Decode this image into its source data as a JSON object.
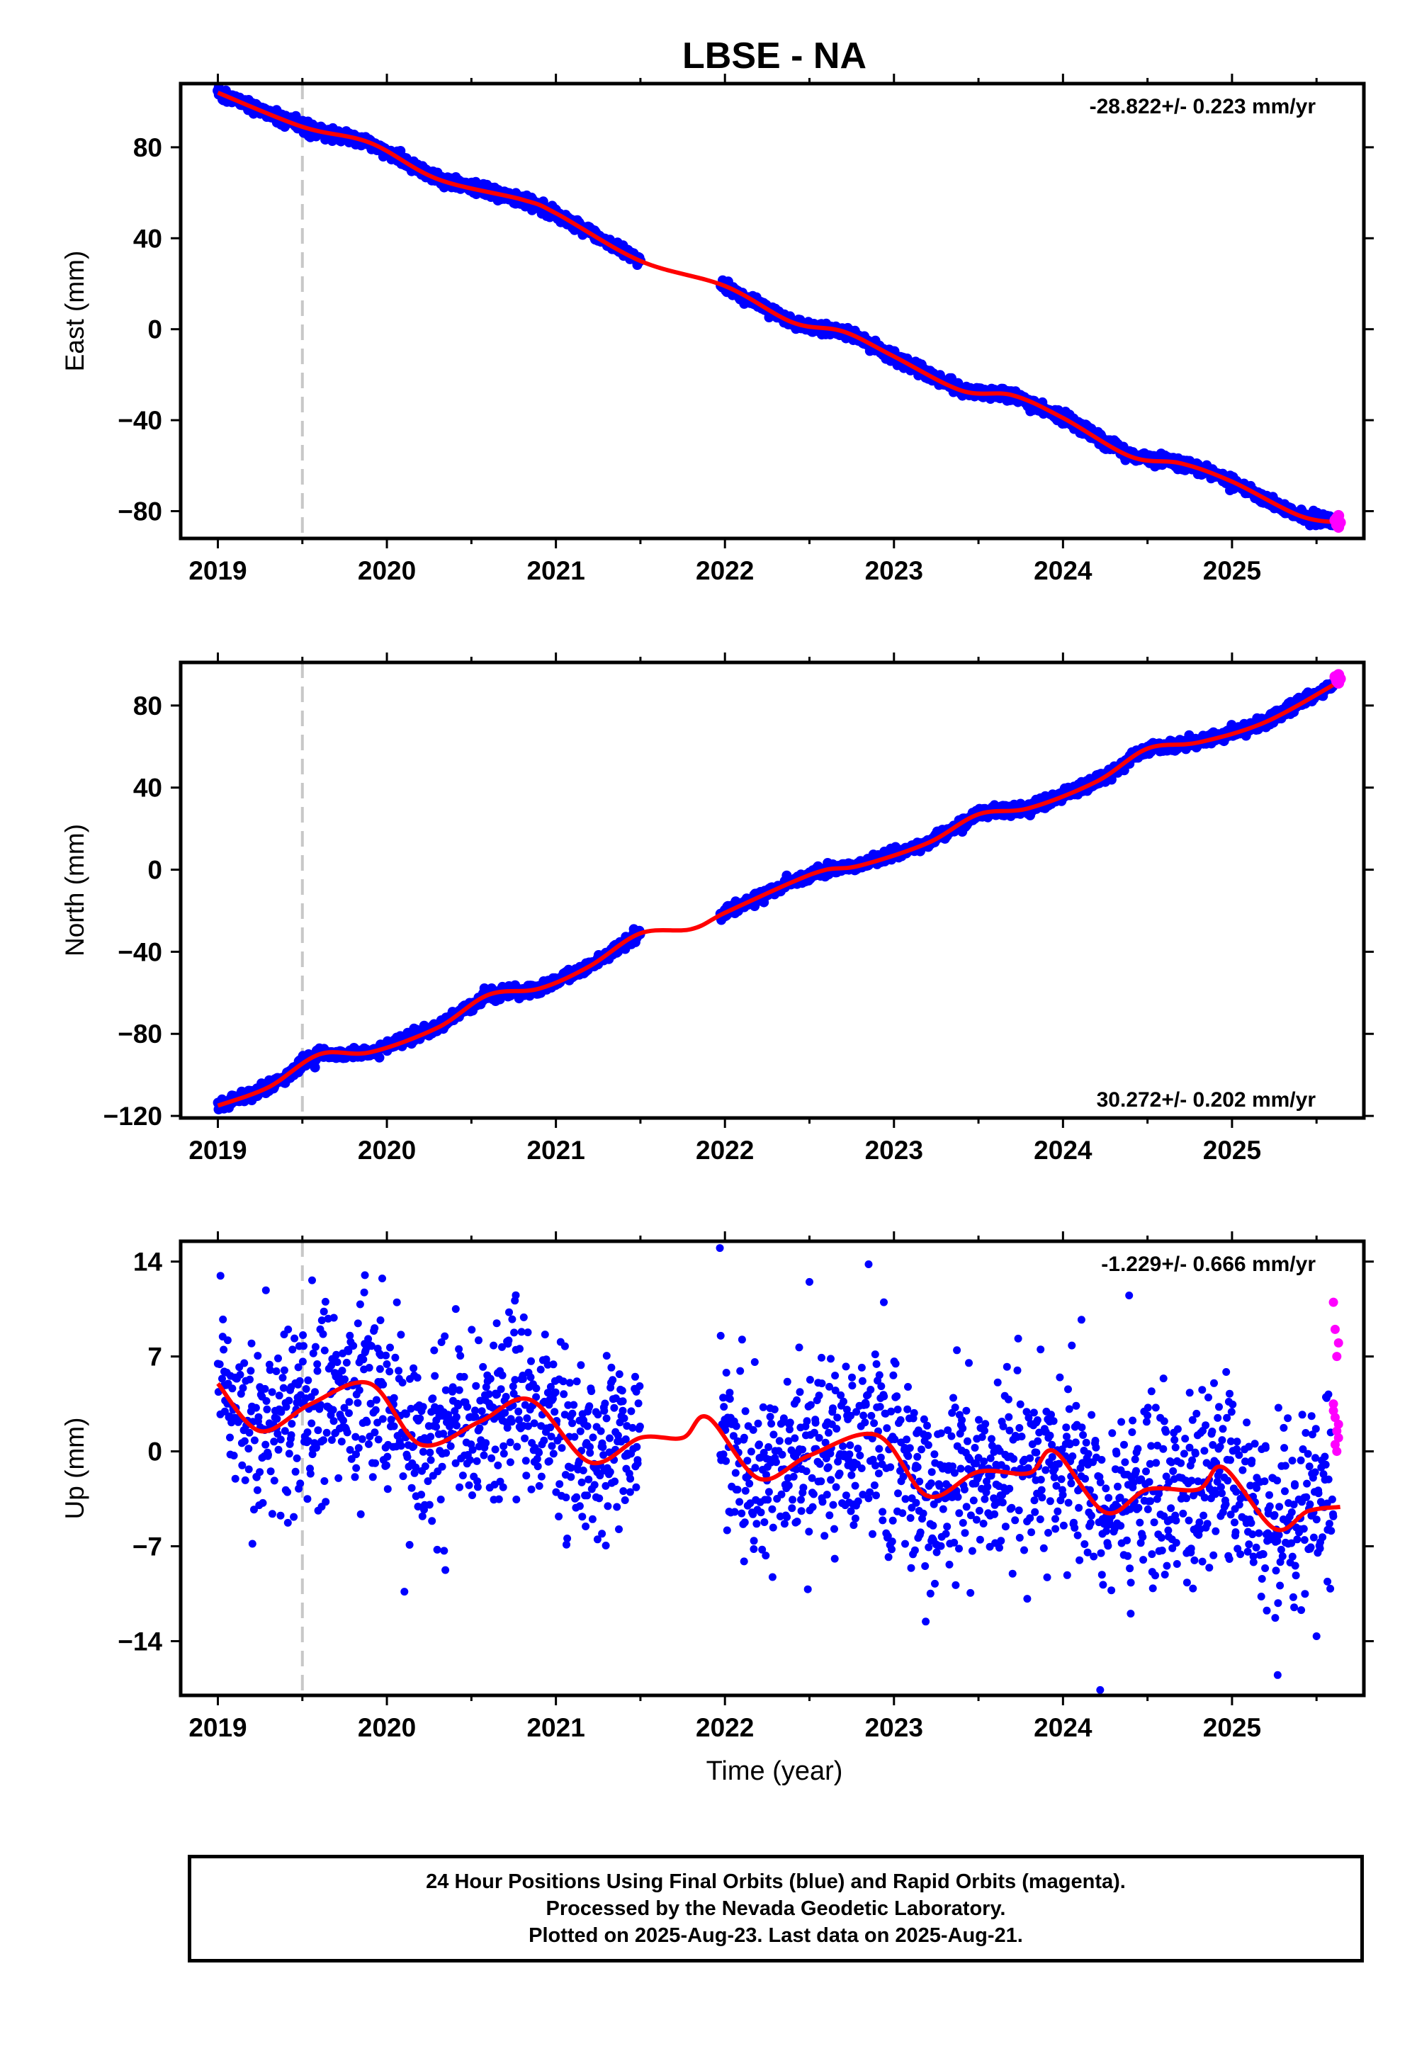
{
  "title": "LBSE - NA",
  "xlabel": "Time (year)",
  "colors": {
    "final_orbits": "#0000ff",
    "rapid_orbits": "#ff00ff",
    "model_fit": "#ff0000",
    "marker_line": "#c8c8c8"
  },
  "vertical_marker_year": 2019.5,
  "chart_data": [
    {
      "type": "scatter",
      "panel": "east",
      "ylabel": "East (mm)",
      "rate_label": "-28.822+/- 0.223 mm/yr",
      "rate_position": "top-right",
      "xlim": [
        2018.78,
        2025.78
      ],
      "ylim": [
        -92,
        108
      ],
      "xticks": [
        2019,
        2020,
        2021,
        2022,
        2023,
        2024,
        2025
      ],
      "yticks": [
        80,
        40,
        0,
        -40,
        -80
      ],
      "ytick_labels": [
        "80",
        "40",
        "0",
        "−40",
        "−80"
      ],
      "trend_knots": [
        [
          2019.0,
          104
        ],
        [
          2019.5,
          89
        ],
        [
          2019.9,
          82
        ],
        [
          2020.3,
          66
        ],
        [
          2020.8,
          57
        ],
        [
          2021.0,
          51
        ],
        [
          2021.5,
          30
        ],
        [
          2022.0,
          19
        ],
        [
          2022.4,
          3
        ],
        [
          2022.7,
          -1
        ],
        [
          2023.0,
          -12
        ],
        [
          2023.4,
          -27
        ],
        [
          2023.7,
          -29
        ],
        [
          2024.0,
          -39
        ],
        [
          2024.4,
          -56
        ],
        [
          2024.7,
          -59
        ],
        [
          2025.0,
          -67
        ],
        [
          2025.4,
          -82
        ],
        [
          2025.64,
          -85
        ]
      ],
      "gap": [
        2021.5,
        2021.97
      ],
      "noise_mm": 1.3,
      "final_orbits_range": [
        2019.0,
        2025.6
      ],
      "rapid_orbits": {
        "x": [
          2025.61,
          2025.62,
          2025.63,
          2025.64,
          2025.63,
          2025.62
        ],
        "y": [
          -84,
          -86,
          -82,
          -85,
          -87,
          -83
        ]
      },
      "model_fit": "smooth curve through the trend"
    },
    {
      "type": "scatter",
      "panel": "north",
      "ylabel": "North (mm)",
      "rate_label": "30.272+/- 0.202 mm/yr",
      "rate_position": "bottom-right",
      "xlim": [
        2018.78,
        2025.78
      ],
      "ylim": [
        -121,
        101
      ],
      "xticks": [
        2019,
        2020,
        2021,
        2022,
        2023,
        2024,
        2025
      ],
      "yticks": [
        80,
        40,
        0,
        -40,
        -80,
        -120
      ],
      "ytick_labels": [
        "80",
        "40",
        "0",
        "−40",
        "−80",
        "−120"
      ],
      "trend_knots": [
        [
          2019.0,
          -115
        ],
        [
          2019.3,
          -106
        ],
        [
          2019.6,
          -90
        ],
        [
          2019.9,
          -89
        ],
        [
          2020.3,
          -77
        ],
        [
          2020.6,
          -61
        ],
        [
          2020.9,
          -58
        ],
        [
          2021.2,
          -47
        ],
        [
          2021.5,
          -31
        ],
        [
          2021.8,
          -29
        ],
        [
          2022.0,
          -21
        ],
        [
          2022.4,
          -6
        ],
        [
          2022.6,
          0
        ],
        [
          2022.8,
          2
        ],
        [
          2023.2,
          13
        ],
        [
          2023.5,
          27
        ],
        [
          2023.8,
          30
        ],
        [
          2024.2,
          43
        ],
        [
          2024.5,
          59
        ],
        [
          2024.8,
          62
        ],
        [
          2025.2,
          72
        ],
        [
          2025.64,
          92
        ]
      ],
      "gap": [
        2021.5,
        2021.97
      ],
      "noise_mm": 1.4,
      "final_orbits_range": [
        2019.0,
        2025.6
      ],
      "rapid_orbits": {
        "x": [
          2025.61,
          2025.62,
          2025.63,
          2025.64,
          2025.63
        ],
        "y": [
          94,
          92,
          95,
          93,
          91
        ]
      },
      "model_fit": "smooth curve through the trend"
    },
    {
      "type": "scatter",
      "panel": "up",
      "ylabel": "Up (mm)",
      "rate_label": "-1.229+/- 0.666 mm/yr",
      "rate_position": "top-right",
      "xlim": [
        2018.78,
        2025.78
      ],
      "ylim": [
        -18,
        15.5
      ],
      "xticks": [
        2019,
        2020,
        2021,
        2022,
        2023,
        2024,
        2025
      ],
      "yticks": [
        14,
        7,
        0,
        -7,
        -14
      ],
      "ytick_labels": [
        "14",
        "7",
        "0",
        "−7",
        "−14"
      ],
      "trend_knots": [
        [
          2019.0,
          5
        ],
        [
          2019.25,
          1.5
        ],
        [
          2019.55,
          3.5
        ],
        [
          2019.9,
          5
        ],
        [
          2020.2,
          0.5
        ],
        [
          2020.55,
          2.2
        ],
        [
          2020.85,
          3.8
        ],
        [
          2021.2,
          -0.8
        ],
        [
          2021.5,
          1
        ],
        [
          2021.75,
          1
        ],
        [
          2021.9,
          2.5
        ],
        [
          2022.2,
          -2
        ],
        [
          2022.5,
          -0.3
        ],
        [
          2022.9,
          1.2
        ],
        [
          2023.2,
          -3.3
        ],
        [
          2023.5,
          -1.5
        ],
        [
          2023.8,
          -1.6
        ],
        [
          2023.95,
          0
        ],
        [
          2024.25,
          -4.5
        ],
        [
          2024.5,
          -2.8
        ],
        [
          2024.8,
          -2.8
        ],
        [
          2024.95,
          -1.2
        ],
        [
          2025.25,
          -5.7
        ],
        [
          2025.45,
          -4.4
        ],
        [
          2025.64,
          -4.1
        ]
      ],
      "gap": [
        2021.5,
        2021.97
      ],
      "noise_mm": 3.4,
      "final_orbits_range": [
        2019.0,
        2025.6
      ],
      "outliers": {
        "x": [
          2021.97,
          2022.5,
          2022.85,
          2024.22,
          2025.27,
          2019.87
        ],
        "y": [
          15,
          12.5,
          13.8,
          -17.6,
          -16.5,
          13
        ]
      },
      "rapid_orbits": {
        "x": [
          2025.6,
          2025.61,
          2025.62,
          2025.63,
          2025.6,
          2025.61,
          2025.62,
          2025.63,
          2025.61,
          2025.62,
          2025.6,
          2025.63
        ],
        "y": [
          11,
          9,
          7,
          8,
          3.5,
          2.5,
          1.5,
          1,
          0.5,
          0,
          3,
          2
        ]
      },
      "model_fit": "smooth curve through the trend"
    }
  ],
  "footer": {
    "line1": "24 Hour Positions Using Final Orbits (blue) and Rapid Orbits (magenta).",
    "line2": "Processed by the Nevada Geodetic Laboratory.",
    "line3": "Plotted on 2025-Aug-23. Last data on 2025-Aug-21."
  }
}
